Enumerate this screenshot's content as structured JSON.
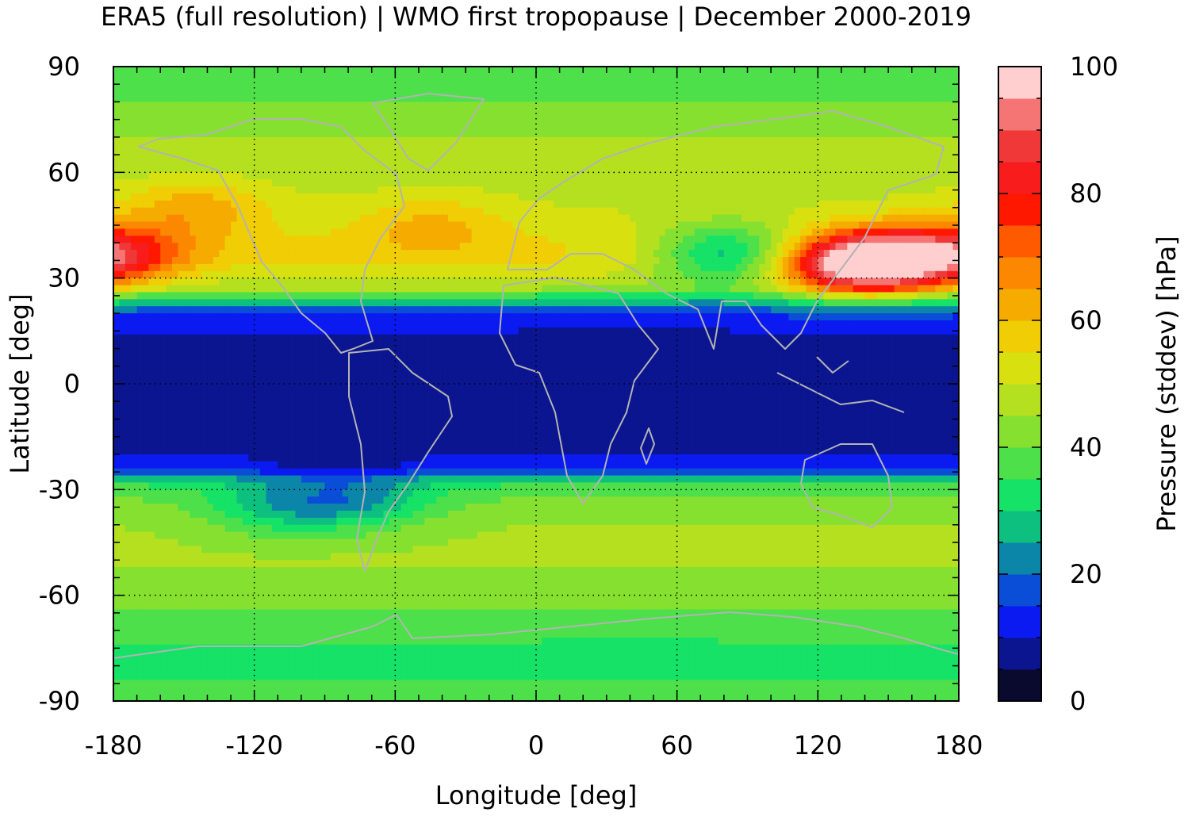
{
  "chart_data": {
    "type": "heatmap",
    "title": "ERA5 (full resolution) | WMO first tropopause | December 2000-2019",
    "xlabel": "Longitude [deg]",
    "ylabel": "Latitude [deg]",
    "xlim": [
      -180,
      180
    ],
    "ylim": [
      -90,
      90
    ],
    "x_ticks": [
      -180,
      -120,
      -60,
      0,
      60,
      120,
      180
    ],
    "x_tick_labels": [
      "-180",
      "-120",
      "-60",
      "0",
      "60",
      "120",
      "180"
    ],
    "y_ticks": [
      90,
      60,
      30,
      0,
      -30,
      -60,
      -90
    ],
    "y_tick_labels": [
      "90",
      "60",
      "30",
      "0",
      "-30",
      "-60",
      "-90"
    ],
    "grid": true,
    "colorbar": {
      "label": "Pressure (stddev) [hPa]",
      "range": [
        0,
        100
      ],
      "ticks": [
        0,
        20,
        40,
        60,
        80,
        100
      ],
      "tick_labels": [
        "0",
        "20",
        "40",
        "60",
        "80",
        "100"
      ],
      "levels": [
        0,
        5,
        10,
        15,
        20,
        25,
        30,
        35,
        40,
        45,
        50,
        55,
        60,
        65,
        70,
        75,
        80,
        85,
        90,
        95,
        100
      ],
      "colors": [
        "#0a0a2e",
        "#0b1590",
        "#0a1af0",
        "#0a4ed8",
        "#0b86a8",
        "#0ec07f",
        "#15e266",
        "#4de04a",
        "#86e030",
        "#b5e020",
        "#d8e010",
        "#f0cd05",
        "#f5ab00",
        "#fb8800",
        "#ff5a00",
        "#ff1800",
        "#f81c1c",
        "#f03838",
        "#f57575",
        "#ffcfcf"
      ]
    },
    "zonal_profile": {
      "lat": [
        -90,
        -80,
        -70,
        -60,
        -50,
        -40,
        -35,
        -30,
        -27,
        -24,
        -20,
        -15,
        -10,
        -5,
        0,
        5,
        10,
        15,
        20,
        24,
        27,
        30,
        35,
        40,
        45,
        50,
        60,
        70,
        80,
        90
      ],
      "stddev_hPa": [
        38,
        33,
        36,
        42,
        46,
        45,
        42,
        38,
        30,
        14,
        10,
        9,
        8,
        8,
        8,
        8,
        8,
        10,
        15,
        30,
        45,
        50,
        55,
        55,
        52,
        50,
        47,
        45,
        40,
        38
      ]
    },
    "features": [
      {
        "lon": 150,
        "lat": 35,
        "stddev_hPa": 98
      },
      {
        "lon": 130,
        "lat": 33,
        "stddev_hPa": 80
      },
      {
        "lon": -178,
        "lat": 37,
        "stddev_hPa": 78
      },
      {
        "lon": -45,
        "lat": 45,
        "stddev_hPa": 62
      },
      {
        "lon": -145,
        "lat": 50,
        "stddev_hPa": 63
      },
      {
        "lon": 82,
        "lat": 37,
        "stddev_hPa": 28
      },
      {
        "lon": -110,
        "lat": -35,
        "stddev_hPa": 28
      },
      {
        "lon": -75,
        "lat": -33,
        "stddev_hPa": 25
      },
      {
        "lon": 40,
        "lat": -78,
        "stddev_hPa": 33
      }
    ]
  }
}
